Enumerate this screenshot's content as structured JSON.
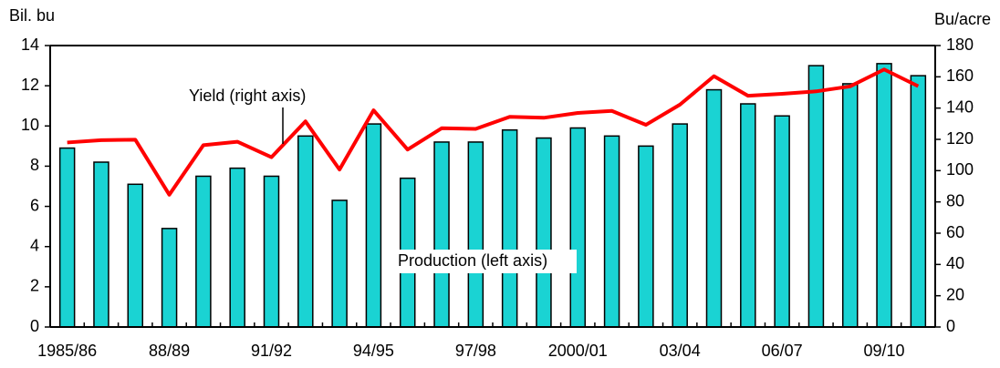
{
  "chart_data": {
    "type": "bar_line",
    "y_label": "Bil. bu",
    "y2_label": "Bu/acre",
    "annotations": [
      "Yield (right axis)",
      "Production (left axis)"
    ],
    "categories": [
      "1985/86",
      null,
      null,
      "88/89",
      null,
      null,
      "91/92",
      null,
      null,
      "94/95",
      null,
      null,
      "97/98",
      null,
      null,
      "2000/01",
      null,
      null,
      "03/04",
      null,
      null,
      "06/07",
      null,
      null,
      "09/10",
      null
    ],
    "series": [
      {
        "name": "Production (left axis)",
        "type": "bar",
        "color": "#1ad3d3",
        "axis": "y",
        "values": [
          8.9,
          8.2,
          7.1,
          4.9,
          7.5,
          7.9,
          7.5,
          9.5,
          6.3,
          10.1,
          7.4,
          9.2,
          9.2,
          9.8,
          9.4,
          9.9,
          9.5,
          9.0,
          10.1,
          11.8,
          11.1,
          10.5,
          13.0,
          12.1,
          13.1,
          12.5
        ]
      },
      {
        "name": "Yield (right axis)",
        "type": "line",
        "color": "#ff0000",
        "axis": "y2",
        "values": [
          118,
          119.5,
          119.8,
          84.6,
          116.3,
          118.5,
          108.6,
          131.5,
          100.7,
          138.6,
          113.5,
          127.1,
          126.7,
          134.4,
          133.8,
          136.9,
          138.2,
          129.3,
          142.2,
          160.4,
          147.9,
          149.1,
          150.7,
          153.9,
          164.7,
          154
        ]
      }
    ],
    "ylim": [
      0,
      14
    ],
    "yticks": [
      0,
      2,
      4,
      6,
      8,
      10,
      12,
      14
    ],
    "y2lim": [
      0,
      180
    ],
    "y2ticks": [
      0,
      20,
      40,
      60,
      80,
      100,
      120,
      140,
      160,
      180
    ],
    "grid": false
  }
}
